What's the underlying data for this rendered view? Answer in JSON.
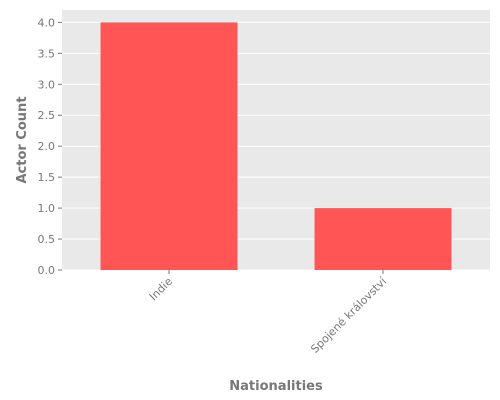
{
  "chart_data": {
    "type": "bar",
    "title": "",
    "xlabel": "Nationalities",
    "ylabel": "Actor Count",
    "categories": [
      "Indie",
      "Spojené království"
    ],
    "values": [
      4,
      1
    ],
    "ylim": [
      0,
      4.2
    ],
    "yticks": [
      "0.0",
      "0.5",
      "1.0",
      "1.5",
      "2.0",
      "2.5",
      "3.0",
      "3.5",
      "4.0"
    ],
    "grid": true,
    "legend": "none",
    "bar_color": "#ff5555",
    "plot_background": "#e9e9e9",
    "grid_color": "#ffffff",
    "tick_label_rotation": -45
  }
}
